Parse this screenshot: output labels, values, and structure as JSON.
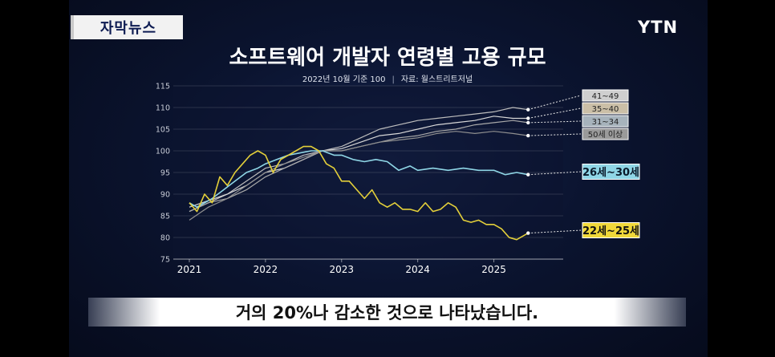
{
  "badge": "자막뉴스",
  "logo": "YTN",
  "title": "소프트웨어 개발자 연령별 고용 규모",
  "subtitle_base": "2022년 10월 기준 100",
  "subtitle_source": "자료: 월스트리트저널",
  "caption": "거의 20%나 감소한 것으로 나타났습니다.",
  "colors": {
    "age41_49": "#bdbdbd",
    "age35_40": "#d7d7d7",
    "age31_34": "#a9a9a9",
    "age50plus": "#8f8f8f",
    "age26_30": "#8fd6e6",
    "age22_25": "#e3cf3a"
  },
  "chart_data": {
    "type": "line",
    "ylim": [
      75,
      115
    ],
    "yticks": [
      75,
      80,
      85,
      90,
      95,
      100,
      105,
      110,
      115
    ],
    "xlim": [
      2021.0,
      2025.7
    ],
    "xticks": [
      "2021",
      "2022",
      "2023",
      "2024",
      "2025"
    ],
    "grid": true,
    "series": [
      {
        "name": "41~49",
        "color_key": "age41_49",
        "x": [
          2021.0,
          2021.25,
          2021.5,
          2021.75,
          2022.0,
          2022.25,
          2022.5,
          2022.75,
          2023.0,
          2023.25,
          2023.5,
          2023.75,
          2024.0,
          2024.25,
          2024.5,
          2024.75,
          2025.0,
          2025.25,
          2025.45
        ],
        "y": [
          86,
          88,
          90,
          93,
          96,
          97,
          99,
          100,
          101,
          103,
          105,
          106,
          107,
          107.5,
          108,
          108.5,
          109,
          110,
          109.5
        ]
      },
      {
        "name": "35~40",
        "color_key": "age35_40",
        "x": [
          2021.0,
          2021.25,
          2021.5,
          2021.75,
          2022.0,
          2022.25,
          2022.5,
          2022.75,
          2023.0,
          2023.25,
          2023.5,
          2023.75,
          2024.0,
          2024.25,
          2024.5,
          2024.75,
          2025.0,
          2025.25,
          2025.45
        ],
        "y": [
          87,
          88.5,
          90,
          92,
          95,
          96,
          98,
          100,
          100.5,
          102,
          103.5,
          104,
          105,
          106,
          106.5,
          107,
          108,
          107.5,
          107.5
        ]
      },
      {
        "name": "31~34",
        "color_key": "age31_34",
        "x": [
          2021.0,
          2021.25,
          2021.5,
          2021.75,
          2022.0,
          2022.25,
          2022.5,
          2022.75,
          2023.0,
          2023.25,
          2023.5,
          2023.75,
          2024.0,
          2024.25,
          2024.5,
          2024.75,
          2025.0,
          2025.25,
          2025.45
        ],
        "y": [
          86,
          88,
          89,
          91,
          94,
          96,
          98,
          100,
          100,
          101,
          102,
          103,
          103.5,
          104.5,
          105,
          106,
          106.5,
          107,
          106.5
        ]
      },
      {
        "name": "50세 이상",
        "color_key": "age50plus",
        "x": [
          2021.0,
          2021.25,
          2021.5,
          2021.75,
          2022.0,
          2022.25,
          2022.5,
          2022.75,
          2023.0,
          2023.25,
          2023.5,
          2023.75,
          2024.0,
          2024.25,
          2024.5,
          2024.75,
          2025.0,
          2025.25,
          2025.45
        ],
        "y": [
          84,
          87,
          89,
          92,
          95,
          97,
          98.5,
          100,
          100,
          101,
          102,
          102.5,
          103,
          104,
          104.5,
          104,
          104.5,
          104,
          103.5
        ]
      },
      {
        "name": "26세~30세",
        "color_key": "age26_30",
        "x": [
          2021.0,
          2021.1,
          2021.2,
          2021.3,
          2021.45,
          2021.6,
          2021.75,
          2021.9,
          2022.0,
          2022.15,
          2022.3,
          2022.45,
          2022.6,
          2022.75,
          2022.9,
          2023.0,
          2023.15,
          2023.3,
          2023.45,
          2023.6,
          2023.75,
          2023.9,
          2024.0,
          2024.2,
          2024.4,
          2024.6,
          2024.8,
          2025.0,
          2025.15,
          2025.3,
          2025.45
        ],
        "y": [
          88,
          87,
          88,
          89,
          91,
          93,
          95,
          96,
          97,
          98,
          99,
          99.5,
          100,
          100,
          99,
          99,
          98,
          97.5,
          98,
          97.5,
          95.5,
          96.5,
          95.5,
          96,
          95.5,
          96,
          95.5,
          95.5,
          94.5,
          95,
          94.5
        ]
      },
      {
        "name": "22세~25세",
        "color_key": "age22_25",
        "x": [
          2021.0,
          2021.1,
          2021.2,
          2021.3,
          2021.4,
          2021.5,
          2021.6,
          2021.7,
          2021.8,
          2021.9,
          2022.0,
          2022.1,
          2022.2,
          2022.3,
          2022.4,
          2022.5,
          2022.6,
          2022.7,
          2022.8,
          2022.9,
          2023.0,
          2023.1,
          2023.2,
          2023.3,
          2023.4,
          2023.5,
          2023.6,
          2023.7,
          2023.8,
          2023.9,
          2024.0,
          2024.1,
          2024.2,
          2024.3,
          2024.4,
          2024.5,
          2024.6,
          2024.7,
          2024.8,
          2024.9,
          2025.0,
          2025.1,
          2025.2,
          2025.3,
          2025.45
        ],
        "y": [
          88,
          86,
          90,
          88,
          94,
          92,
          95,
          97,
          99,
          100,
          99,
          95,
          98,
          99,
          100,
          101,
          101,
          100,
          97,
          96,
          93,
          93,
          91,
          89,
          91,
          88,
          87,
          88,
          86.5,
          86.5,
          86,
          88,
          86,
          86.5,
          88,
          87,
          84,
          83.5,
          84,
          83,
          83,
          82,
          80,
          79.5,
          81
        ]
      }
    ]
  }
}
